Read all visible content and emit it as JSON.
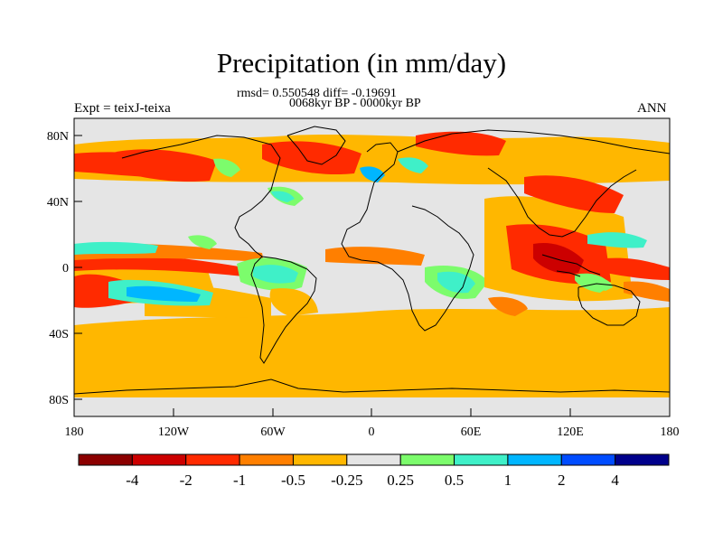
{
  "figure": {
    "title": "Precipitation (in mm/day)",
    "stats": "rmsd= 0.550548 diff= -0.19691",
    "period": "0068kyr BP - 0000kyr BP",
    "experiment": "Expt = teixJ-teixa",
    "season": "ANN"
  },
  "chart_data": {
    "type": "heatmap",
    "projection": "cylindrical-equidistant",
    "variable": "Precipitation difference (mm/day)",
    "x_axis": {
      "range": [
        -180,
        180
      ],
      "ticks": [
        -180,
        -120,
        -60,
        0,
        60,
        120,
        180
      ],
      "tick_labels": [
        "180",
        "120W",
        "60W",
        "0",
        "60E",
        "120E",
        "180"
      ]
    },
    "y_axis": {
      "range": [
        -90,
        90
      ],
      "ticks": [
        80,
        40,
        0,
        -40,
        -80
      ],
      "tick_labels": [
        "80N",
        "40N",
        "0",
        "40S",
        "80S"
      ]
    },
    "colorbar": {
      "levels": [
        -4,
        -2,
        -1,
        -0.5,
        -0.25,
        0.25,
        0.5,
        1,
        2,
        4
      ],
      "level_labels": [
        "-4",
        "-2",
        "-1",
        "-0.5",
        "-0.25",
        "0.25",
        "0.5",
        "1",
        "2",
        "4"
      ],
      "colors": [
        "#8b0000",
        "#cc0000",
        "#ff2a00",
        "#ff7f00",
        "#ffb700",
        "#e5e5e5",
        "#7cfc6c",
        "#3ff0c8",
        "#00b6ff",
        "#004cff",
        "#00008b"
      ]
    }
  }
}
